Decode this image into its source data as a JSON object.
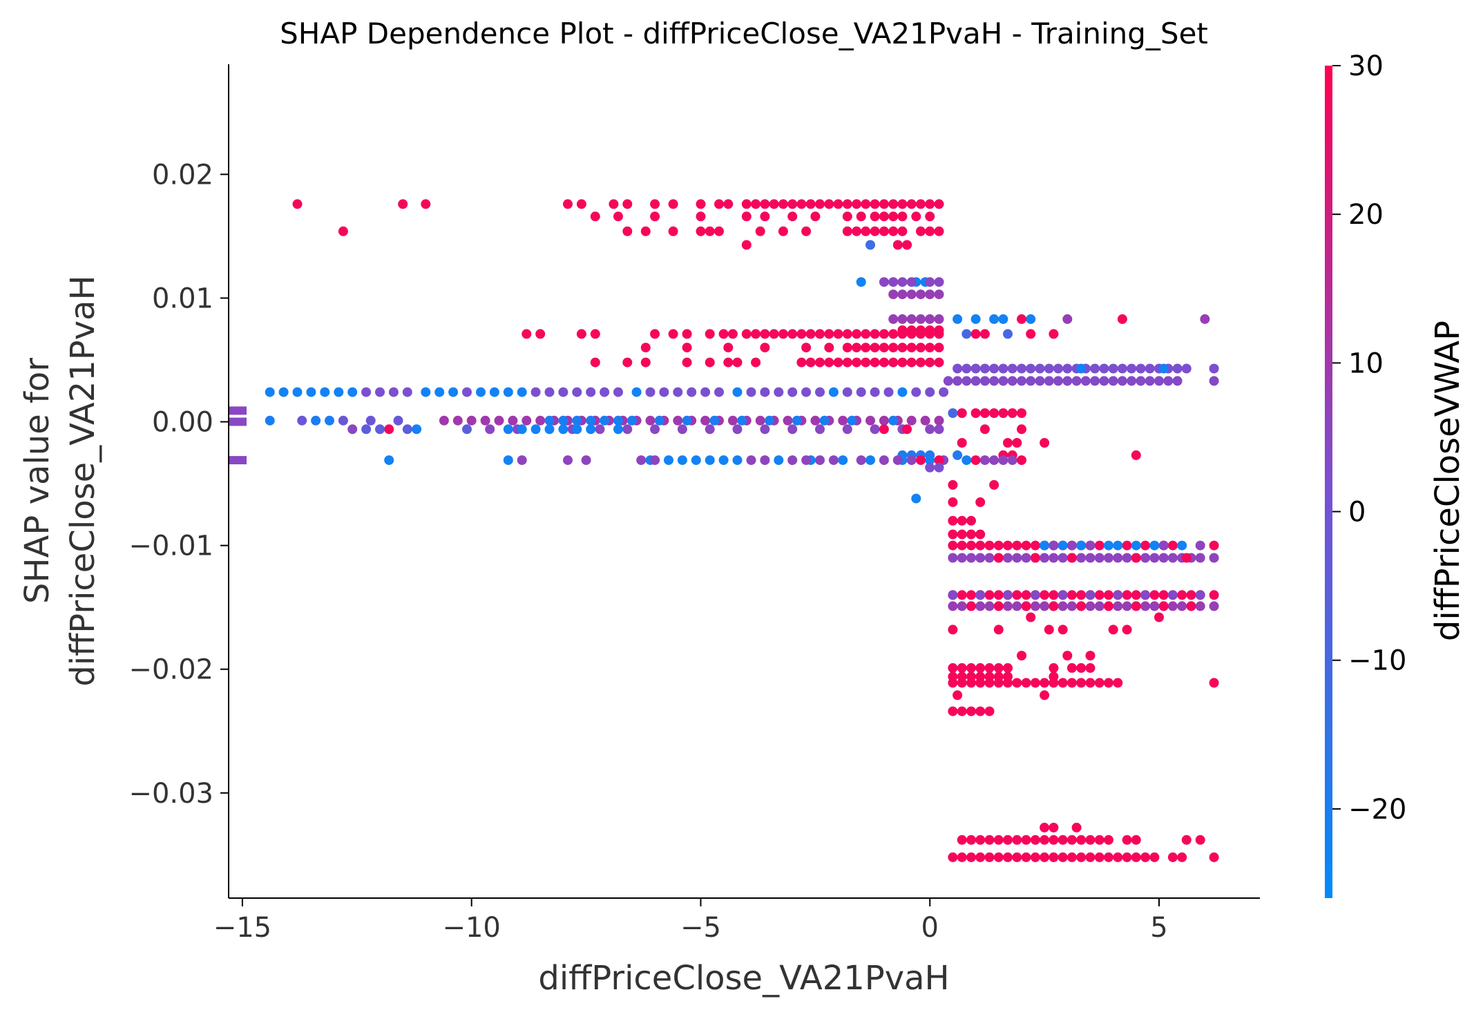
{
  "chart_data": {
    "type": "scatter",
    "title": "SHAP Dependence Plot - diffPriceClose_VA21PvaH - Training_Set",
    "xlabel": "diffPriceClose_VA21PvaH",
    "ylabel_line1": "SHAP value for",
    "ylabel_line2": "diffPriceClose_VA21PvaH",
    "xlim": [
      -15.3,
      7.2
    ],
    "ylim": [
      -0.0385,
      0.0289
    ],
    "xticks": [
      -15,
      -10,
      -5,
      0,
      5
    ],
    "xtick_labels": [
      "−15",
      "−10",
      "−5",
      "0",
      "5"
    ],
    "yticks": [
      0.02,
      0.01,
      0.0,
      -0.01,
      -0.02,
      -0.03
    ],
    "ytick_labels": [
      "0.02",
      "0.01",
      "0.00",
      "−0.01",
      "−0.02",
      "−0.03"
    ],
    "colorbar": {
      "label": "diffPriceCloseVWAP",
      "range": [
        -26,
        30
      ],
      "ticks": [
        30,
        20,
        10,
        0,
        -10,
        -20
      ],
      "tick_labels": [
        "30",
        "20",
        "10",
        "0",
        "−10",
        "−20"
      ],
      "colors": [
        "#008afb",
        "#7b4fd0",
        "#ff0052"
      ]
    },
    "nan_points": [
      {
        "y": 0.0009,
        "c": 5
      },
      {
        "y": 0.0,
        "c": 5
      },
      {
        "y": -0.0031,
        "c": 5
      }
    ],
    "series": [
      {
        "y": 0.0176,
        "c": 28,
        "x": [
          -13.8,
          -11.5,
          -11.0,
          -7.9,
          -7.6,
          -6.9,
          -6.6,
          -6.0,
          -5.6,
          -5.0,
          -4.6,
          -4.4,
          -4.0,
          -3.8,
          -3.6,
          -3.4,
          -3.2,
          -3.0,
          -2.8,
          -2.6,
          -2.4,
          -2.2,
          -2.0,
          -1.8,
          -1.6,
          -1.4,
          -1.2,
          -1.0,
          -0.8,
          -0.6,
          -0.4,
          -0.2,
          0.0,
          0.2
        ]
      },
      {
        "y": 0.0166,
        "c": 28,
        "x": [
          -7.3,
          -6.8,
          -6.0,
          -5.0,
          -4.0,
          -3.6,
          -3.0,
          -2.5,
          -1.8,
          -1.5,
          -1.2,
          -1.0,
          -0.8,
          -0.6,
          -0.3,
          0.0
        ]
      },
      {
        "y": 0.0154,
        "c": 28,
        "x": [
          -12.8,
          -6.6,
          -6.2,
          -5.6,
          -5.0,
          -4.8,
          -4.6,
          -3.7,
          -3.2,
          -2.7,
          -1.8,
          -1.6,
          -1.4,
          -1.2,
          -1.0,
          -0.8,
          -0.6,
          -0.2,
          0.0,
          0.2
        ]
      },
      {
        "y": 0.0143,
        "c": 28,
        "x": [
          -4.0,
          -0.7,
          -0.5
        ]
      },
      {
        "y": 0.0143,
        "c": -12,
        "x": [
          -1.3
        ]
      },
      {
        "y": 0.0113,
        "c": -22,
        "x": [
          -1.5,
          -0.3,
          -0.1
        ]
      },
      {
        "y": 0.0113,
        "c": 5,
        "x": [
          -1.0,
          -0.8,
          -0.6,
          -0.4,
          0.0,
          0.2
        ]
      },
      {
        "y": 0.0103,
        "c": 8,
        "x": [
          -0.8,
          -0.6,
          -0.4,
          -0.2,
          0.0,
          0.2
        ]
      },
      {
        "y": 0.0083,
        "c": 8,
        "x": [
          -0.8,
          -0.6,
          -0.4,
          -0.2,
          0.0,
          0.2,
          3.0,
          6.0
        ]
      },
      {
        "y": 0.0083,
        "c": -22,
        "x": [
          0.6,
          1.0,
          1.4,
          1.6,
          2.2
        ]
      },
      {
        "y": 0.0083,
        "c": 28,
        "x": [
          2.0,
          4.2
        ]
      },
      {
        "y": 0.0074,
        "c": 28,
        "x": [
          -0.6,
          -0.4,
          -0.2,
          0.0,
          0.2
        ]
      },
      {
        "y": 0.0071,
        "c": 28,
        "x": [
          -8.8,
          -8.5,
          -7.6,
          -7.3,
          -6.0,
          -5.6,
          -5.3,
          -4.8,
          -4.5,
          -4.3,
          -4.0,
          -3.8,
          -3.6,
          -3.4,
          -3.2,
          -3.0,
          -2.8,
          -2.6,
          -2.4,
          -2.2,
          -2.0,
          -1.8,
          -1.6,
          -1.4,
          -1.2,
          -1.0,
          -0.8,
          -0.6,
          -0.4,
          -0.2,
          0.0,
          0.2
        ]
      },
      {
        "y": 0.0071,
        "c": -10,
        "x": [
          0.8,
          1.7
        ]
      },
      {
        "y": 0.0071,
        "c": 28,
        "x": [
          1.0,
          1.2,
          2.2,
          2.7
        ]
      },
      {
        "y": 0.006,
        "c": 28,
        "x": [
          -6.2,
          -5.3,
          -4.4,
          -3.6,
          -2.7,
          -2.2,
          -1.8,
          -1.6,
          -1.4,
          -1.2,
          -1.0,
          -0.8,
          -0.6,
          -0.4,
          -0.2,
          0.0,
          0.2
        ]
      },
      {
        "y": 0.0048,
        "c": 28,
        "x": [
          -7.3,
          -6.6,
          -6.2,
          -5.3,
          -4.8,
          -4.4,
          -4.2,
          -3.8,
          -2.8,
          -2.6,
          -2.4,
          -2.2,
          -2.0,
          -1.8,
          -1.6,
          -1.4,
          -1.2,
          -1.0,
          -0.8,
          -0.6,
          -0.4,
          -0.2,
          0.0,
          0.2
        ]
      },
      {
        "y": 0.0043,
        "c": 2,
        "x": [
          0.6,
          0.8,
          1.0,
          1.2,
          1.4,
          1.6,
          1.8,
          2.0,
          2.2,
          2.4,
          2.6,
          2.8,
          3.0,
          3.2,
          3.4,
          3.6,
          3.8,
          4.0,
          4.2,
          4.4,
          4.6,
          4.8,
          5.0,
          5.2,
          5.4,
          5.6,
          6.2
        ]
      },
      {
        "y": 0.0043,
        "c": -22,
        "x": [
          3.3,
          5.1
        ]
      },
      {
        "y": 0.0033,
        "c": 4,
        "x": [
          0.4,
          0.6,
          0.8,
          1.0,
          1.2,
          1.4,
          1.6,
          1.8,
          2.0,
          2.2,
          2.4,
          2.6,
          2.8,
          3.0,
          3.2,
          3.4,
          3.6,
          3.8,
          4.0,
          4.2,
          4.4,
          4.6,
          4.8,
          5.0,
          5.2,
          5.4,
          6.2
        ]
      },
      {
        "y": 0.0024,
        "c": -22,
        "x": [
          -14.4,
          -14.1,
          -13.8,
          -13.5,
          -13.2,
          -12.9,
          -12.6,
          -11.0,
          -10.7,
          -10.4,
          -9.8,
          -9.5,
          -9.2,
          -8.9,
          -6.4,
          -4.2,
          -2.1,
          -0.6
        ]
      },
      {
        "y": 0.0024,
        "c": 2,
        "x": [
          -12.3,
          -12.0,
          -11.7,
          -11.4,
          -10.1,
          -8.6,
          -8.3,
          -8.0,
          -7.7,
          -7.4,
          -7.1,
          -6.8,
          -6.1,
          -5.8,
          -5.5,
          -5.2,
          -4.9,
          -4.6,
          -3.9,
          -3.6,
          -3.3,
          -3.0,
          -2.7,
          -2.4,
          -1.8,
          -1.5,
          -1.2,
          -0.9,
          -0.3,
          0.0,
          0.3
        ]
      },
      {
        "y": 0.0007,
        "c": 28,
        "x": [
          0.7,
          1.0,
          1.2,
          1.4,
          1.6,
          1.8,
          2.0
        ]
      },
      {
        "y": 0.0007,
        "c": -10,
        "x": [
          0.5
        ]
      },
      {
        "y": 0.0001,
        "c": 10,
        "x": [
          -10.6,
          -10.3,
          -10.0,
          -9.7,
          -9.4,
          -9.1,
          -8.8,
          -8.5,
          -8.2,
          -7.9,
          -7.6,
          -7.3,
          -7.0,
          -6.7,
          -6.4,
          -6.1,
          -5.8,
          -5.5,
          -5.2,
          -4.9,
          -4.6,
          -4.3,
          -4.0,
          -3.7,
          -3.4,
          -3.1,
          -2.8,
          -2.5,
          -2.2,
          -1.9,
          -1.6,
          -1.3,
          -1.0,
          -0.7,
          -0.4,
          -0.1,
          0.2
        ]
      },
      {
        "y": 0.0001,
        "c": -20,
        "x": [
          -14.4,
          -13.4,
          -13.1,
          -8.3,
          -8.0,
          -7.7,
          -7.4,
          -7.1,
          -6.8,
          -6.5,
          -5.9,
          -5.3,
          -4.7,
          -4.1,
          -3.5,
          -2.9,
          -2.3,
          -1.7,
          -0.8
        ]
      },
      {
        "y": 0.0001,
        "c": -2,
        "x": [
          -13.7,
          -12.8,
          -12.2,
          -11.6
        ]
      },
      {
        "y": -0.0006,
        "c": 5,
        "x": [
          -12.6,
          -9.6,
          -9.0,
          -7.8,
          -7.2,
          -6.6,
          -6.0,
          -5.4,
          -4.8,
          -4.2,
          -3.6,
          -3.0,
          -2.4,
          -1.8,
          -1.2,
          -0.6,
          0.0,
          0.2
        ]
      },
      {
        "y": -0.0006,
        "c": 28,
        "x": [
          -11.8,
          -1.0,
          -0.5,
          1.2,
          2.0
        ]
      },
      {
        "y": -0.0006,
        "c": -22,
        "x": [
          -11.2,
          -9.2,
          -8.9,
          -8.6,
          -8.3,
          -8.0,
          -7.7,
          -7.4,
          -6.8
        ]
      },
      {
        "y": -0.0006,
        "c": -5,
        "x": [
          -12.3,
          -12.0,
          -11.4,
          -10.1
        ]
      },
      {
        "y": -0.0017,
        "c": 28,
        "x": [
          0.7,
          1.7,
          1.9,
          2.5
        ]
      },
      {
        "y": -0.0027,
        "c": -18,
        "x": [
          -0.6,
          -0.4,
          -0.2,
          0.0,
          0.6
        ]
      },
      {
        "y": -0.0027,
        "c": 28,
        "x": [
          1.6,
          1.8,
          4.5
        ]
      },
      {
        "y": -0.0031,
        "c": -22,
        "x": [
          -11.8,
          -9.2,
          -6.1,
          -5.7,
          -5.4,
          -5.1,
          -4.8,
          -4.5,
          -4.2,
          -3.3,
          -2.6,
          -1.9,
          -1.3,
          -0.6,
          0.0,
          0.8
        ]
      },
      {
        "y": -0.0031,
        "c": 6,
        "x": [
          -8.9,
          -7.9,
          -7.5,
          -6.3,
          -6.0,
          -3.9,
          -3.6,
          -3.0,
          -2.7,
          -2.4,
          -2.1,
          -1.5,
          -1.0,
          -0.7,
          -0.4,
          0.3,
          1.2,
          1.4,
          1.6,
          1.8
        ]
      },
      {
        "y": -0.0031,
        "c": 28,
        "x": [
          -0.2,
          0.2,
          1.0,
          2.0
        ]
      },
      {
        "y": -0.0037,
        "c": 2,
        "x": [
          0.0,
          0.2
        ]
      },
      {
        "y": -0.0051,
        "c": 28,
        "x": [
          0.5,
          1.4
        ]
      },
      {
        "y": -0.0062,
        "c": -22,
        "x": [
          -0.3
        ]
      },
      {
        "y": -0.0065,
        "c": 28,
        "x": [
          0.5,
          1.1
        ]
      },
      {
        "y": -0.008,
        "c": 28,
        "x": [
          0.5,
          0.7,
          0.9
        ]
      },
      {
        "y": -0.0091,
        "c": 28,
        "x": [
          0.5,
          0.7,
          0.9,
          1.1
        ]
      },
      {
        "y": -0.01,
        "c": 28,
        "x": [
          0.5,
          0.7,
          0.9,
          1.1,
          1.3,
          1.5,
          1.7,
          1.9,
          2.1,
          2.3,
          2.5,
          2.7,
          2.9,
          3.1,
          3.3,
          3.5,
          3.7,
          4.3,
          4.7,
          5.1,
          5.3,
          6.2
        ]
      },
      {
        "y": -0.01,
        "c": -22,
        "x": [
          2.5,
          2.9,
          3.3,
          3.9,
          4.1,
          4.5,
          4.9,
          5.5
        ]
      },
      {
        "y": -0.01,
        "c": 6,
        "x": [
          2.7,
          3.1,
          3.5,
          5.1,
          5.9
        ]
      },
      {
        "y": -0.011,
        "c": 6,
        "x": [
          0.5,
          0.7,
          0.9,
          1.1,
          1.3,
          1.5,
          1.7,
          1.9,
          2.1,
          2.3,
          2.5,
          2.7,
          2.9,
          3.1,
          3.3,
          3.5,
          3.7,
          3.9,
          4.1,
          4.3,
          4.5,
          4.7,
          4.9,
          5.1,
          5.3,
          5.5,
          5.7,
          5.9,
          6.2
        ]
      },
      {
        "y": -0.011,
        "c": 28,
        "x": [
          1.5,
          2.3,
          3.1,
          4.5,
          5.6
        ]
      },
      {
        "y": -0.014,
        "c": 28,
        "x": [
          0.5,
          0.7,
          0.9,
          1.1,
          1.3,
          1.5,
          1.7,
          1.9,
          2.1,
          2.3,
          2.5,
          2.7,
          2.9,
          3.1,
          3.3,
          3.5,
          3.7,
          3.9,
          4.1,
          4.3,
          4.5,
          4.7,
          4.9,
          5.1,
          5.3,
          5.5,
          5.7,
          5.9,
          6.2
        ]
      },
      {
        "y": -0.014,
        "c": 4,
        "x": [
          0.5,
          1.1,
          1.7,
          2.3,
          2.9,
          3.5,
          4.1,
          4.7,
          5.3,
          5.9
        ]
      },
      {
        "y": -0.0149,
        "c": 8,
        "x": [
          0.5,
          0.7,
          0.9,
          1.1,
          1.3,
          1.5,
          1.7,
          1.9,
          2.1,
          2.3,
          2.5,
          2.7,
          2.9,
          3.1,
          3.3,
          3.5,
          3.7,
          3.9,
          4.1,
          4.3,
          4.5,
          4.7,
          4.9,
          5.1,
          5.3,
          5.5,
          5.7,
          5.9,
          6.2
        ]
      },
      {
        "y": -0.0149,
        "c": 28,
        "x": [
          0.9,
          1.5,
          2.1,
          2.7,
          3.3,
          3.9,
          4.5,
          5.1,
          5.7
        ]
      },
      {
        "y": -0.0158,
        "c": 28,
        "x": [
          2.2,
          5.0
        ]
      },
      {
        "y": -0.0168,
        "c": 28,
        "x": [
          0.5,
          1.5,
          2.6,
          2.9,
          4.0,
          4.3
        ]
      },
      {
        "y": -0.0189,
        "c": 28,
        "x": [
          2.0,
          3.0,
          3.5
        ]
      },
      {
        "y": -0.0199,
        "c": 28,
        "x": [
          0.5,
          0.7,
          0.9,
          1.1,
          1.3,
          1.5,
          1.7,
          2.7,
          3.1,
          3.3,
          3.5
        ]
      },
      {
        "y": -0.0206,
        "c": 28,
        "x": [
          0.5,
          0.7,
          0.9,
          1.1,
          1.3,
          1.5,
          1.7,
          2.7
        ]
      },
      {
        "y": -0.0211,
        "c": 28,
        "x": [
          0.5,
          0.7,
          0.9,
          1.1,
          1.3,
          1.5,
          1.7,
          1.9,
          2.1,
          2.3,
          2.5,
          2.7,
          2.9,
          3.1,
          3.3,
          3.5,
          3.7,
          3.9,
          4.1,
          6.2
        ]
      },
      {
        "y": -0.0221,
        "c": 28,
        "x": [
          0.6,
          2.5
        ]
      },
      {
        "y": -0.0234,
        "c": 28,
        "x": [
          0.5,
          0.7,
          0.9,
          1.1,
          1.3
        ]
      },
      {
        "y": -0.0328,
        "c": 28,
        "x": [
          2.5,
          2.7,
          3.2
        ]
      },
      {
        "y": -0.0338,
        "c": 28,
        "x": [
          0.7,
          0.9,
          1.1,
          1.3,
          1.5,
          1.7,
          1.9,
          2.1,
          2.3,
          2.5,
          2.7,
          2.9,
          3.1,
          3.3,
          3.5,
          3.7,
          3.9,
          4.3,
          4.5,
          5.6,
          5.9
        ]
      },
      {
        "y": -0.0352,
        "c": 28,
        "x": [
          0.5,
          0.7,
          0.9,
          1.1,
          1.3,
          1.5,
          1.7,
          1.9,
          2.1,
          2.3,
          2.5,
          2.7,
          2.9,
          3.1,
          3.3,
          3.5,
          3.7,
          3.9,
          4.1,
          4.3,
          4.5,
          4.7,
          4.9,
          5.3,
          5.5,
          6.2
        ]
      }
    ]
  }
}
